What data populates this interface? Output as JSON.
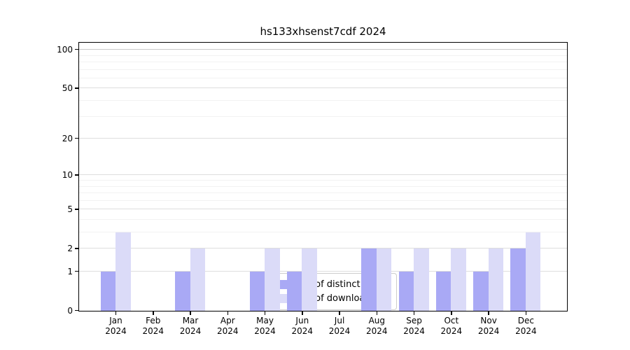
{
  "chart_data": {
    "type": "bar",
    "title": "hs133xhsenst7cdf 2024",
    "categories": [
      "Jan 2024",
      "Feb 2024",
      "Mar 2024",
      "Apr 2024",
      "May 2024",
      "Jun 2024",
      "Jul 2024",
      "Aug 2024",
      "Sep 2024",
      "Oct 2024",
      "Nov 2024",
      "Dec 2024"
    ],
    "series": [
      {
        "name": "Nb of distinct IPs",
        "color": "#a9a9f5",
        "values": [
          1,
          0,
          1,
          0,
          1,
          1,
          0,
          2,
          1,
          1,
          1,
          2
        ]
      },
      {
        "name": "Nb of downloads",
        "color": "#dbdbf8",
        "values": [
          3,
          0,
          2,
          0,
          2,
          2,
          0,
          2,
          2,
          2,
          2,
          3
        ]
      }
    ],
    "xlabel": "",
    "ylabel": "",
    "yscale": "log1p",
    "ylim": [
      0,
      114
    ],
    "yticks": [
      0,
      1,
      2,
      5,
      10,
      20,
      50,
      100
    ],
    "minor_yticks": [
      3,
      4,
      6,
      7,
      8,
      9,
      30,
      40,
      60,
      70,
      80,
      90
    ],
    "grid": true,
    "legend_position": "lower center"
  }
}
